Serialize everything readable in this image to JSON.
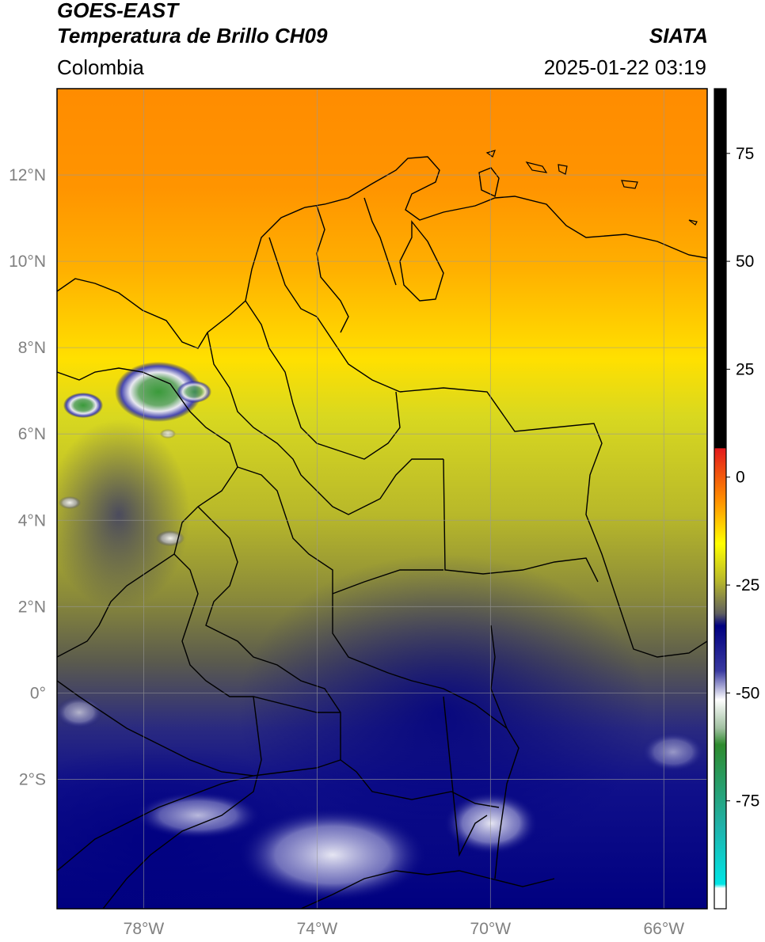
{
  "header": {
    "satellite": "GOES-EAST",
    "product": "Temperatura de Brillo CH09",
    "brand": "SIATA",
    "region": "Colombia",
    "datetime": "2025-01-22 03:19"
  },
  "map": {
    "lon_range": [
      -80,
      -65
    ],
    "lat_range": [
      -5,
      14
    ],
    "lon_ticks": [
      {
        "value": -78,
        "label": "78°W"
      },
      {
        "value": -74,
        "label": "74°W"
      },
      {
        "value": -70,
        "label": "70°W"
      },
      {
        "value": -66,
        "label": "66°W"
      }
    ],
    "lat_ticks": [
      {
        "value": 12,
        "label": "12°N"
      },
      {
        "value": 10,
        "label": "10°N"
      },
      {
        "value": 8,
        "label": "8°N"
      },
      {
        "value": 6,
        "label": "6°N"
      },
      {
        "value": 4,
        "label": "4°N"
      },
      {
        "value": 2,
        "label": "2°N"
      },
      {
        "value": 0,
        "label": "0°"
      },
      {
        "value": -2,
        "label": "2°S"
      }
    ],
    "grid": true
  },
  "colorbar": {
    "range": [
      -100,
      90
    ],
    "ticks": [
      {
        "value": 75,
        "label": "75"
      },
      {
        "value": 50,
        "label": "50"
      },
      {
        "value": 25,
        "label": "25"
      },
      {
        "value": 0,
        "label": "0"
      },
      {
        "value": -25,
        "label": "-25"
      },
      {
        "value": -50,
        "label": "-50"
      },
      {
        "value": -75,
        "label": "-75"
      }
    ],
    "colors": {
      "black": "#000000",
      "red": "#e31a1c",
      "orange": "#ff8c00",
      "yellow": "#ffff00",
      "olive": "#9e9e2a",
      "gray": "#5f5f5f",
      "navy": "#000080",
      "white": "#ffffff",
      "green": "#2e8b2e",
      "cyan": "#00e5e5"
    }
  }
}
